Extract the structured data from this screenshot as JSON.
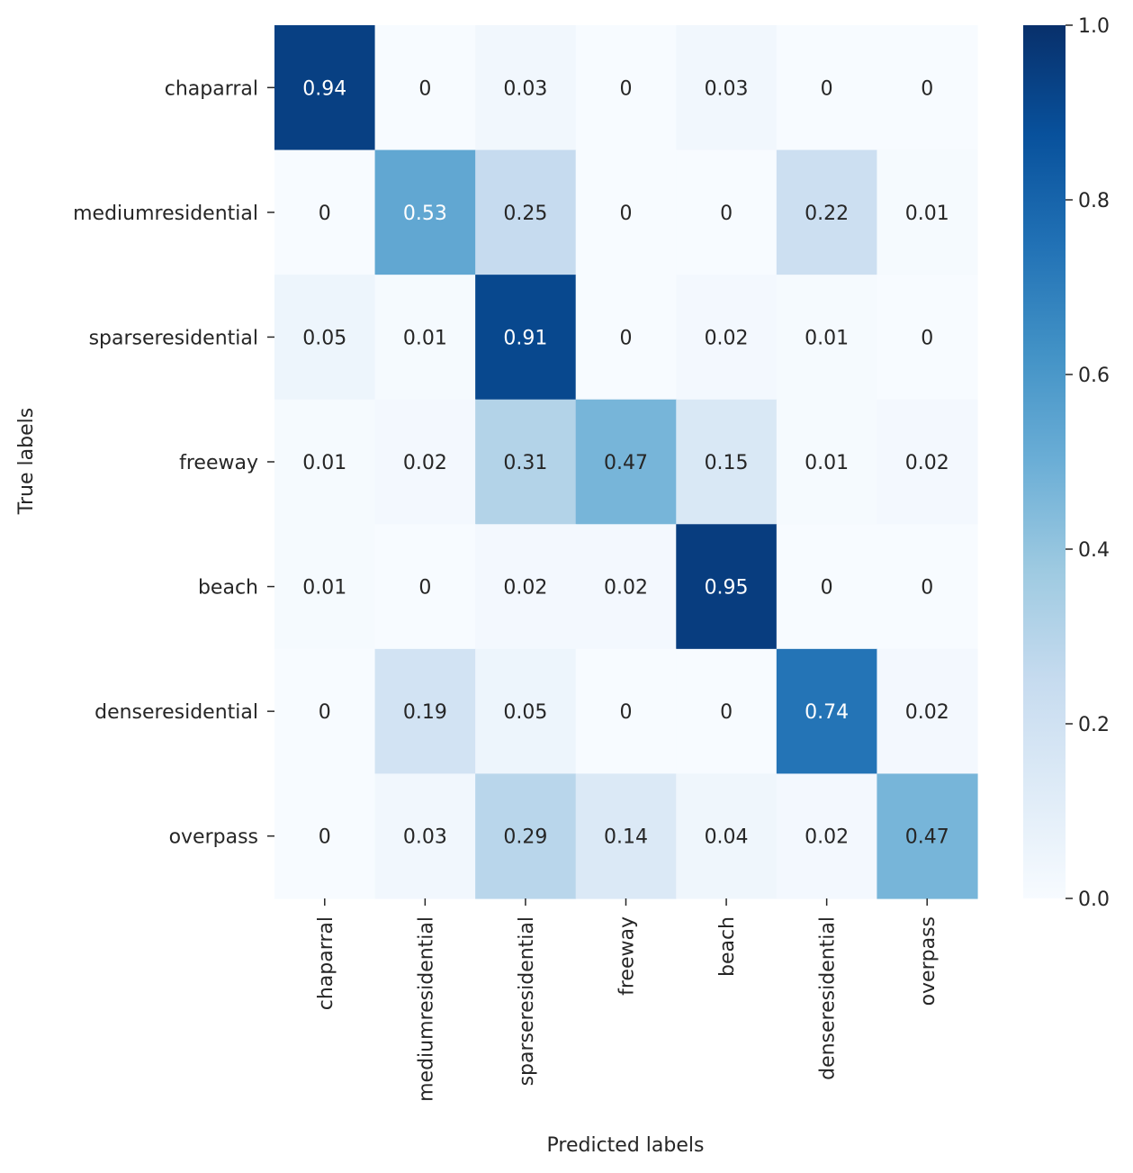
{
  "chart_data": {
    "type": "heatmap",
    "title": "",
    "xlabel": "Predicted labels",
    "ylabel": "True labels",
    "row_labels": [
      "chaparral",
      "mediumresidential",
      "sparseresidential",
      "freeway",
      "beach",
      "denseresidential",
      "overpass"
    ],
    "col_labels": [
      "chaparral",
      "mediumresidential",
      "sparseresidential",
      "freeway",
      "beach",
      "denseresidential",
      "overpass"
    ],
    "values": [
      [
        0.94,
        0,
        0.03,
        0,
        0.03,
        0,
        0
      ],
      [
        0,
        0.53,
        0.25,
        0,
        0,
        0.22,
        0.01
      ],
      [
        0.05,
        0.01,
        0.91,
        0,
        0.02,
        0.01,
        0
      ],
      [
        0.01,
        0.02,
        0.31,
        0.47,
        0.15,
        0.01,
        0.02
      ],
      [
        0.01,
        0,
        0.02,
        0.02,
        0.95,
        0,
        0
      ],
      [
        0,
        0.19,
        0.05,
        0,
        0,
        0.74,
        0.02
      ],
      [
        0,
        0.03,
        0.29,
        0.14,
        0.04,
        0.02,
        0.47
      ]
    ],
    "value_labels": [
      [
        "0.94",
        "0",
        "0.03",
        "0",
        "0.03",
        "0",
        "0"
      ],
      [
        "0",
        "0.53",
        "0.25",
        "0",
        "0",
        "0.22",
        "0.01"
      ],
      [
        "0.05",
        "0.01",
        "0.91",
        "0",
        "0.02",
        "0.01",
        "0"
      ],
      [
        "0.01",
        "0.02",
        "0.31",
        "0.47",
        "0.15",
        "0.01",
        "0.02"
      ],
      [
        "0.01",
        "0",
        "0.02",
        "0.02",
        "0.95",
        "0",
        "0"
      ],
      [
        "0",
        "0.19",
        "0.05",
        "0",
        "0",
        "0.74",
        "0.02"
      ],
      [
        "0",
        "0.03",
        "0.29",
        "0.14",
        "0.04",
        "0.02",
        "0.47"
      ]
    ],
    "colormap": "Blues",
    "colormap_stops": [
      "#f7fbff",
      "#deebf7",
      "#c6dbef",
      "#9ecae1",
      "#6baed6",
      "#4292c6",
      "#2171b5",
      "#08519c",
      "#08306b"
    ],
    "vmin": 0.0,
    "vmax": 1.0,
    "colorbar_ticks": [
      "0.0",
      "0.2",
      "0.4",
      "0.6",
      "0.8",
      "1.0"
    ],
    "colorbar_tick_values": [
      0.0,
      0.2,
      0.4,
      0.6,
      0.8,
      1.0
    ],
    "annotation_colors": {
      "dark": "#262626",
      "light": "#ffffff"
    }
  }
}
